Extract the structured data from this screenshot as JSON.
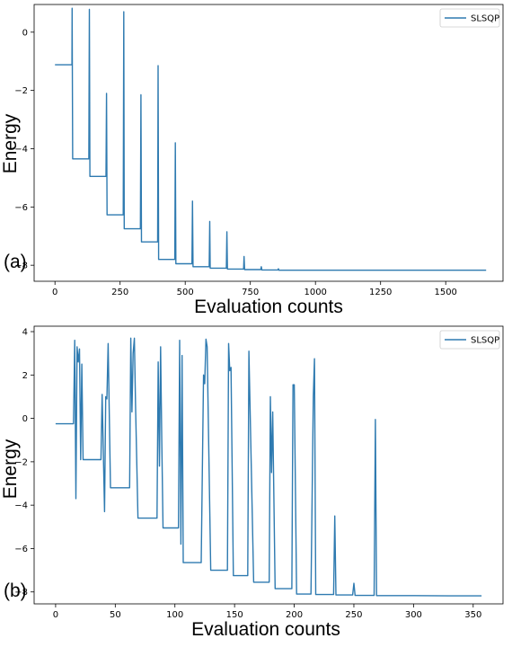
{
  "chart_data": [
    {
      "type": "line",
      "panel_label": "(a)",
      "xlabel": "Evaluation counts",
      "ylabel": "Energy",
      "xlim": [
        -80,
        1720
      ],
      "ylim": [
        -8.55,
        0.95
      ],
      "xticks": [
        0,
        250,
        500,
        750,
        1000,
        1250,
        1500
      ],
      "yticks": [
        0,
        -2,
        -4,
        -6,
        -8
      ],
      "legend": {
        "position": "top-right",
        "entries": [
          "SLSQP"
        ]
      },
      "grid": false,
      "series": [
        {
          "name": "SLSQP",
          "color": "#2e7ab0",
          "points": [
            [
              0,
              -1.12
            ],
            [
              65,
              -1.12
            ],
            [
              66,
              0.82
            ],
            [
              68,
              -4.35
            ],
            [
              130,
              -4.35
            ],
            [
              132,
              0.78
            ],
            [
              134,
              -4.95
            ],
            [
              196,
              -4.95
            ],
            [
              198,
              -2.1
            ],
            [
              200,
              -6.27
            ],
            [
              262,
              -6.27
            ],
            [
              264,
              0.7
            ],
            [
              266,
              -6.75
            ],
            [
              328,
              -6.75
            ],
            [
              330,
              -2.15
            ],
            [
              332,
              -7.2
            ],
            [
              394,
              -7.2
            ],
            [
              396,
              -1.15
            ],
            [
              398,
              -7.8
            ],
            [
              460,
              -7.8
            ],
            [
              462,
              -3.8
            ],
            [
              464,
              -7.95
            ],
            [
              526,
              -7.95
            ],
            [
              528,
              -5.8
            ],
            [
              530,
              -8.05
            ],
            [
              592,
              -8.05
            ],
            [
              594,
              -6.5
            ],
            [
              596,
              -8.1
            ],
            [
              658,
              -8.1
            ],
            [
              660,
              -6.85
            ],
            [
              662,
              -8.13
            ],
            [
              724,
              -8.13
            ],
            [
              726,
              -7.7
            ],
            [
              728,
              -8.15
            ],
            [
              790,
              -8.15
            ],
            [
              792,
              -8.05
            ],
            [
              794,
              -8.16
            ],
            [
              856,
              -8.16
            ],
            [
              858,
              -8.12
            ],
            [
              860,
              -8.17
            ],
            [
              1000,
              -8.17
            ],
            [
              1200,
              -8.17
            ],
            [
              1400,
              -8.17
            ],
            [
              1655,
              -8.17
            ]
          ]
        }
      ]
    },
    {
      "type": "line",
      "panel_label": "(b)",
      "xlabel": "Evaluation counts",
      "ylabel": "Energy",
      "xlim": [
        -18,
        375
      ],
      "ylim": [
        -8.55,
        4.25
      ],
      "xticks": [
        0,
        50,
        100,
        150,
        200,
        250,
        300,
        350
      ],
      "yticks": [
        4,
        2,
        0,
        -2,
        -4,
        -6,
        -8
      ],
      "legend": {
        "position": "top-right",
        "entries": [
          "SLSQP"
        ]
      },
      "grid": false,
      "series": [
        {
          "name": "SLSQP",
          "color": "#2e7ab0",
          "points": [
            [
              0,
              -0.25
            ],
            [
              15,
              -0.25
            ],
            [
              16,
              3.6
            ],
            [
              17,
              -3.7
            ],
            [
              18,
              3.3
            ],
            [
              19,
              2.6
            ],
            [
              20,
              3.2
            ],
            [
              21,
              -1.9
            ],
            [
              22,
              2.5
            ],
            [
              23,
              -1.9
            ],
            [
              38,
              -1.9
            ],
            [
              39,
              1.1
            ],
            [
              41,
              -4.3
            ],
            [
              42,
              1.0
            ],
            [
              43,
              0.9
            ],
            [
              44,
              3.45
            ],
            [
              46,
              -3.2
            ],
            [
              62,
              -3.2
            ],
            [
              63,
              3.7
            ],
            [
              64,
              0.3
            ],
            [
              65,
              3.0
            ],
            [
              66,
              3.7
            ],
            [
              67,
              0.6
            ],
            [
              69,
              -4.6
            ],
            [
              85,
              -4.6
            ],
            [
              86,
              2.6
            ],
            [
              87,
              -2.2
            ],
            [
              88,
              3.3
            ],
            [
              89,
              -1.0
            ],
            [
              90,
              -5.05
            ],
            [
              103,
              -5.05
            ],
            [
              104,
              3.6
            ],
            [
              105,
              -5.8
            ],
            [
              106,
              2.9
            ],
            [
              107,
              -6.65
            ],
            [
              122,
              -6.65
            ],
            [
              124,
              2.0
            ],
            [
              125,
              1.6
            ],
            [
              126,
              3.65
            ],
            [
              127,
              3.3
            ],
            [
              130,
              -7.0
            ],
            [
              144,
              -7.0
            ],
            [
              145,
              3.45
            ],
            [
              146,
              2.2
            ],
            [
              147,
              2.35
            ],
            [
              149,
              -7.25
            ],
            [
              161,
              -7.25
            ],
            [
              162,
              3.1
            ],
            [
              166,
              -7.55
            ],
            [
              179,
              -7.55
            ],
            [
              180,
              1.0
            ],
            [
              181,
              -2.5
            ],
            [
              182,
              0.3
            ],
            [
              184,
              -7.85
            ],
            [
              198,
              -7.85
            ],
            [
              199,
              1.55
            ],
            [
              200,
              1.55
            ],
            [
              202,
              -8.1
            ],
            [
              214,
              -8.1
            ],
            [
              216,
              1.0
            ],
            [
              217,
              2.75
            ],
            [
              218,
              -8.12
            ],
            [
              233,
              -8.12
            ],
            [
              234,
              -4.5
            ],
            [
              235,
              -8.14
            ],
            [
              249,
              -8.14
            ],
            [
              250,
              -7.6
            ],
            [
              251,
              -8.16
            ],
            [
              267,
              -8.16
            ],
            [
              268,
              -0.05
            ],
            [
              269,
              -8.17
            ],
            [
              300,
              -8.17
            ],
            [
              330,
              -8.18
            ],
            [
              357,
              -8.18
            ]
          ]
        }
      ]
    }
  ]
}
